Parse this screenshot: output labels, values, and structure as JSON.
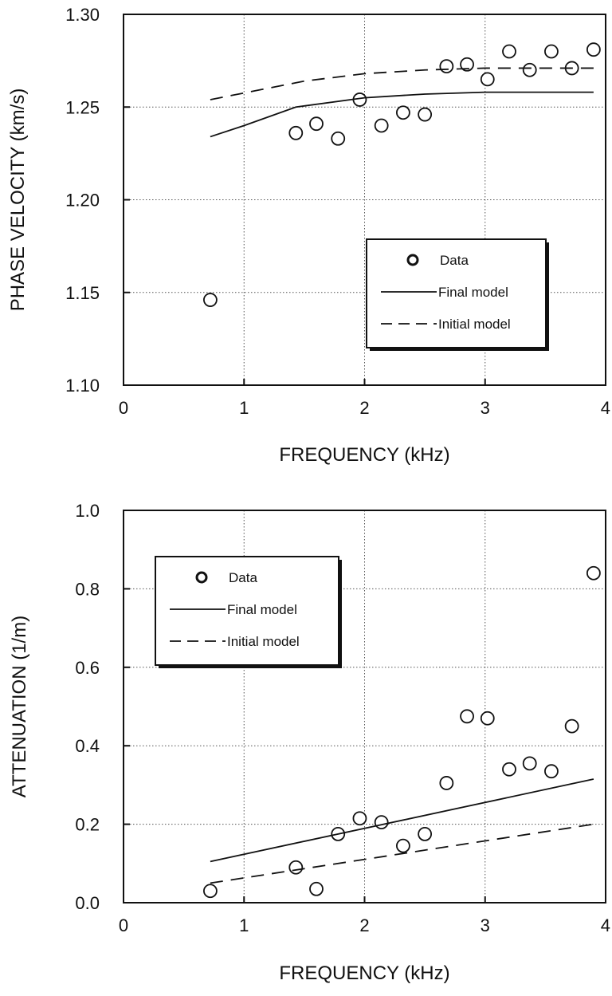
{
  "chart_data": [
    {
      "type": "scatter",
      "xlabel": "FREQUENCY (kHz)",
      "ylabel": "PHASE VELOCITY (km/s)",
      "xlim": [
        0,
        4
      ],
      "ylim": [
        1.1,
        1.3
      ],
      "xticks": [
        "0",
        "1",
        "2",
        "3",
        "4"
      ],
      "yticks": [
        "1.10",
        "1.15",
        "1.20",
        "1.25",
        "1.30"
      ],
      "grid": true,
      "legend_position": "center-right",
      "series": [
        {
          "name": "Data",
          "style": "open-circle",
          "x": [
            0.72,
            1.43,
            1.6,
            1.78,
            1.96,
            2.14,
            2.32,
            2.5,
            2.68,
            2.85,
            3.02,
            3.2,
            3.37,
            3.55,
            3.72,
            3.9
          ],
          "y": [
            1.146,
            1.236,
            1.241,
            1.233,
            1.254,
            1.24,
            1.247,
            1.246,
            1.272,
            1.273,
            1.265,
            1.28,
            1.27,
            1.28,
            1.271,
            1.281
          ]
        },
        {
          "name": "Final model",
          "style": "solid",
          "x": [
            0.72,
            1.0,
            1.43,
            2.0,
            2.5,
            3.0,
            3.5,
            3.9
          ],
          "y": [
            1.234,
            1.24,
            1.25,
            1.255,
            1.257,
            1.258,
            1.258,
            1.258
          ]
        },
        {
          "name": "Initial model",
          "style": "dashed",
          "x": [
            0.72,
            1.5,
            2.0,
            2.5,
            3.0,
            3.5,
            3.9
          ],
          "y": [
            1.254,
            1.264,
            1.268,
            1.27,
            1.271,
            1.271,
            1.271
          ]
        }
      ]
    },
    {
      "type": "scatter",
      "xlabel": "FREQUENCY (kHz)",
      "ylabel": "ATTENUATION (1/m)",
      "xlim": [
        0,
        4
      ],
      "ylim": [
        0.0,
        1.0
      ],
      "xticks": [
        "0",
        "1",
        "2",
        "3",
        "4"
      ],
      "yticks": [
        "0.0",
        "0.2",
        "0.4",
        "0.6",
        "0.8",
        "1.0"
      ],
      "grid": true,
      "legend_position": "top-left",
      "series": [
        {
          "name": "Data",
          "style": "open-circle",
          "x": [
            0.72,
            1.43,
            1.6,
            1.78,
            1.96,
            2.14,
            2.32,
            2.5,
            2.68,
            2.85,
            3.02,
            3.2,
            3.37,
            3.55,
            3.72,
            3.9
          ],
          "y": [
            0.03,
            0.09,
            0.035,
            0.175,
            0.215,
            0.205,
            0.145,
            0.175,
            0.305,
            0.475,
            0.47,
            0.34,
            0.355,
            0.335,
            0.45,
            0.84
          ]
        },
        {
          "name": "Final model",
          "style": "solid",
          "x": [
            0.72,
            3.9
          ],
          "y": [
            0.105,
            0.315
          ]
        },
        {
          "name": "Initial model",
          "style": "dashed",
          "x": [
            0.72,
            3.9
          ],
          "y": [
            0.05,
            0.2
          ]
        }
      ]
    }
  ]
}
